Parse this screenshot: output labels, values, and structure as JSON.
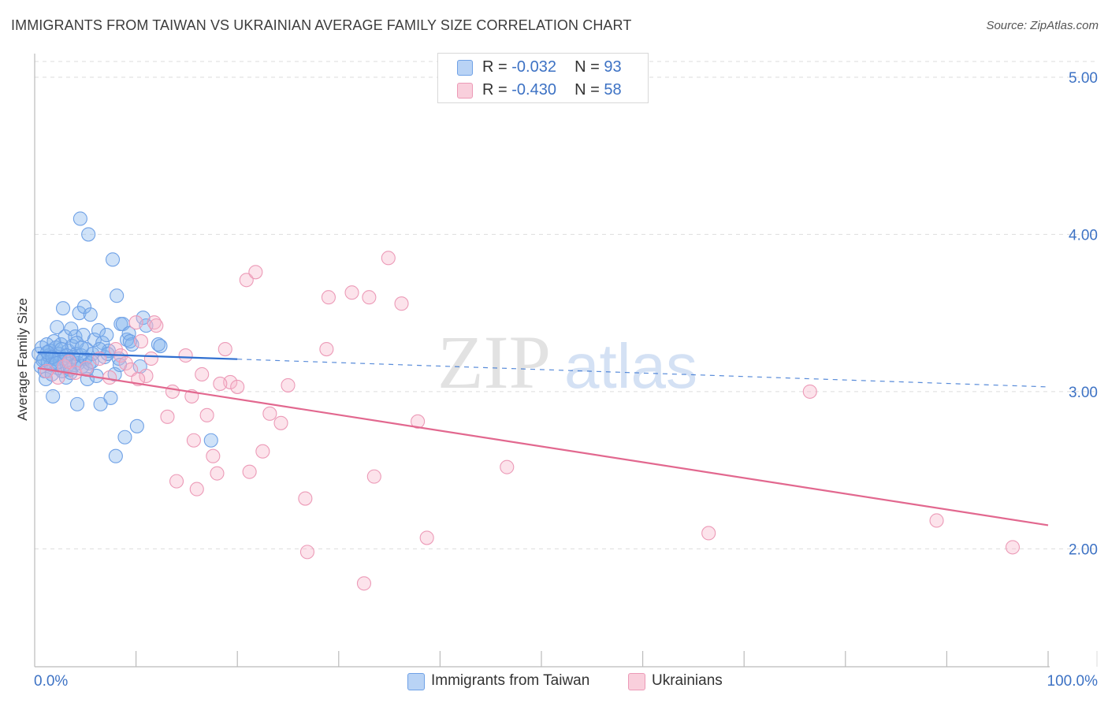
{
  "header": {
    "title": "IMMIGRANTS FROM TAIWAN VS UKRAINIAN AVERAGE FAMILY SIZE CORRELATION CHART",
    "source": "Source: ZipAtlas.com"
  },
  "watermark": {
    "zip": "ZIP",
    "atlas": "atlas"
  },
  "stats": {
    "rows": [
      {
        "r_label": "R =",
        "r_value": "-0.032",
        "n_label": "N =",
        "n_value": "93",
        "color": "#6fa1e6"
      },
      {
        "r_label": "R =",
        "r_value": "-0.430",
        "n_label": "N =",
        "n_value": "58",
        "color": "#ec9ab7"
      }
    ]
  },
  "legend": {
    "items": [
      {
        "label": "Immigrants from Taiwan",
        "color": "#6fa1e6"
      },
      {
        "label": "Ukrainians",
        "color": "#ec9ab7"
      }
    ]
  },
  "colors": {
    "blue": "#6fa1e6",
    "blue_line": "#2f6fd0",
    "pink": "#ec9ab7",
    "pink_line": "#e2688f",
    "tick_text": "#3d72c4",
    "grid": "#dddddd"
  },
  "chart_data": {
    "type": "scatter",
    "title": "IMMIGRANTS FROM TAIWAN VS UKRAINIAN AVERAGE FAMILY SIZE CORRELATION CHART",
    "xlabel": "",
    "ylabel": "Average Family Size",
    "xlim": [
      0,
      100
    ],
    "ylim": [
      1.25,
      5.1
    ],
    "x_tick_labels": [
      {
        "value": 0,
        "label": "0.0%"
      },
      {
        "value": 100,
        "label": "100.0%"
      }
    ],
    "y_ticks": [
      {
        "value": 2.0,
        "label": "2.00"
      },
      {
        "value": 3.0,
        "label": "3.00"
      },
      {
        "value": 4.0,
        "label": "4.00"
      },
      {
        "value": 5.0,
        "label": "5.00"
      }
    ],
    "x_minor_ticks": [
      10,
      20,
      30,
      40,
      50,
      60,
      70,
      80,
      90
    ],
    "grid": true,
    "series": [
      {
        "name": "Immigrants from Taiwan",
        "color": "#6fa1e6",
        "trend": {
          "x_start": 0.3,
          "y_start": 3.25,
          "x_solid_end": 20,
          "x_end": 100,
          "y_end": 3.03
        },
        "points": [
          [
            0.4,
            3.24
          ],
          [
            0.6,
            3.16
          ],
          [
            0.7,
            3.28
          ],
          [
            0.9,
            3.21
          ],
          [
            1.0,
            3.13
          ],
          [
            1.1,
            3.08
          ],
          [
            1.2,
            3.3
          ],
          [
            1.3,
            3.19
          ],
          [
            1.4,
            3.23
          ],
          [
            1.5,
            3.26
          ],
          [
            1.6,
            3.17
          ],
          [
            1.7,
            3.11
          ],
          [
            1.8,
            2.97
          ],
          [
            1.9,
            3.32
          ],
          [
            2.0,
            3.21
          ],
          [
            2.1,
            3.28
          ],
          [
            2.2,
            3.41
          ],
          [
            2.3,
            3.15
          ],
          [
            2.4,
            3.24
          ],
          [
            2.5,
            3.19
          ],
          [
            2.6,
            3.3
          ],
          [
            2.7,
            3.13
          ],
          [
            2.8,
            3.53
          ],
          [
            2.9,
            3.21
          ],
          [
            3.0,
            3.35
          ],
          [
            3.1,
            3.09
          ],
          [
            3.2,
            3.16
          ],
          [
            3.3,
            3.26
          ],
          [
            3.4,
            3.2
          ],
          [
            3.5,
            3.14
          ],
          [
            3.6,
            3.4
          ],
          [
            3.7,
            3.29
          ],
          [
            3.8,
            3.22
          ],
          [
            3.9,
            3.17
          ],
          [
            4.0,
            3.35
          ],
          [
            4.1,
            3.24
          ],
          [
            4.2,
            2.92
          ],
          [
            4.3,
            3.18
          ],
          [
            4.4,
            3.5
          ],
          [
            4.5,
            4.1
          ],
          [
            4.6,
            3.23
          ],
          [
            4.7,
            3.16
          ],
          [
            4.8,
            3.36
          ],
          [
            4.9,
            3.54
          ],
          [
            5.0,
            3.21
          ],
          [
            5.1,
            3.27
          ],
          [
            5.2,
            3.08
          ],
          [
            5.3,
            4.0
          ],
          [
            5.4,
            3.18
          ],
          [
            5.5,
            3.49
          ],
          [
            5.7,
            3.24
          ],
          [
            5.9,
            3.33
          ],
          [
            6.1,
            3.1
          ],
          [
            6.3,
            3.39
          ],
          [
            6.5,
            2.92
          ],
          [
            6.7,
            3.31
          ],
          [
            6.9,
            3.22
          ],
          [
            7.1,
            3.36
          ],
          [
            7.3,
            3.26
          ],
          [
            7.5,
            2.96
          ],
          [
            7.7,
            3.84
          ],
          [
            7.9,
            3.11
          ],
          [
            8.0,
            2.59
          ],
          [
            8.1,
            3.61
          ],
          [
            8.3,
            3.21
          ],
          [
            8.5,
            3.43
          ],
          [
            8.7,
            3.43
          ],
          [
            8.9,
            2.71
          ],
          [
            9.1,
            3.33
          ],
          [
            9.3,
            3.37
          ],
          [
            9.6,
            3.3
          ],
          [
            10.1,
            2.78
          ],
          [
            10.4,
            3.16
          ],
          [
            10.7,
            3.47
          ],
          [
            11.0,
            3.42
          ],
          [
            12.2,
            3.3
          ],
          [
            17.4,
            2.69
          ],
          [
            0.8,
            3.2
          ],
          [
            1.25,
            3.25
          ],
          [
            1.75,
            3.22
          ],
          [
            2.15,
            3.18
          ],
          [
            2.65,
            3.27
          ],
          [
            3.15,
            3.23
          ],
          [
            3.55,
            3.12
          ],
          [
            4.15,
            3.31
          ],
          [
            4.65,
            3.28
          ],
          [
            5.15,
            3.14
          ],
          [
            5.65,
            3.19
          ],
          [
            6.4,
            3.27
          ],
          [
            7.2,
            3.24
          ],
          [
            8.4,
            3.17
          ],
          [
            9.4,
            3.32
          ],
          [
            12.4,
            3.29
          ]
        ]
      },
      {
        "name": "Ukrainians",
        "color": "#ec9ab7",
        "trend": {
          "x_start": 0.3,
          "y_start": 3.15,
          "x_end": 100,
          "y_end": 2.15
        },
        "points": [
          [
            1.2,
            3.13
          ],
          [
            2.3,
            3.09
          ],
          [
            2.9,
            3.16
          ],
          [
            3.4,
            3.19
          ],
          [
            4.0,
            3.12
          ],
          [
            5.1,
            3.15
          ],
          [
            6.4,
            3.21
          ],
          [
            7.4,
            3.09
          ],
          [
            8.0,
            3.27
          ],
          [
            8.5,
            3.23
          ],
          [
            9.0,
            3.18
          ],
          [
            9.5,
            3.14
          ],
          [
            10.0,
            3.44
          ],
          [
            10.5,
            3.32
          ],
          [
            11.0,
            3.1
          ],
          [
            11.5,
            3.21
          ],
          [
            11.8,
            3.44
          ],
          [
            12.0,
            3.42
          ],
          [
            13.1,
            2.84
          ],
          [
            13.6,
            3.0
          ],
          [
            14.0,
            2.43
          ],
          [
            14.9,
            3.23
          ],
          [
            15.5,
            2.97
          ],
          [
            15.7,
            2.69
          ],
          [
            16.0,
            2.38
          ],
          [
            16.5,
            3.11
          ],
          [
            17.0,
            2.85
          ],
          [
            17.6,
            2.59
          ],
          [
            18.0,
            2.48
          ],
          [
            18.8,
            3.27
          ],
          [
            19.3,
            3.06
          ],
          [
            20.0,
            3.03
          ],
          [
            20.9,
            3.71
          ],
          [
            21.2,
            2.49
          ],
          [
            21.8,
            3.76
          ],
          [
            22.5,
            2.62
          ],
          [
            23.2,
            2.86
          ],
          [
            24.3,
            2.8
          ],
          [
            25.0,
            3.04
          ],
          [
            26.7,
            2.32
          ],
          [
            26.9,
            1.98
          ],
          [
            28.8,
            3.27
          ],
          [
            29.0,
            3.6
          ],
          [
            31.3,
            3.63
          ],
          [
            32.5,
            1.78
          ],
          [
            33.0,
            3.6
          ],
          [
            33.5,
            2.46
          ],
          [
            34.9,
            3.85
          ],
          [
            36.2,
            3.56
          ],
          [
            37.8,
            2.81
          ],
          [
            38.7,
            2.07
          ],
          [
            46.6,
            2.52
          ],
          [
            66.5,
            2.1
          ],
          [
            76.5,
            3.0
          ],
          [
            89.0,
            2.18
          ],
          [
            96.5,
            2.01
          ],
          [
            10.2,
            3.08
          ],
          [
            18.3,
            3.05
          ]
        ]
      }
    ]
  }
}
